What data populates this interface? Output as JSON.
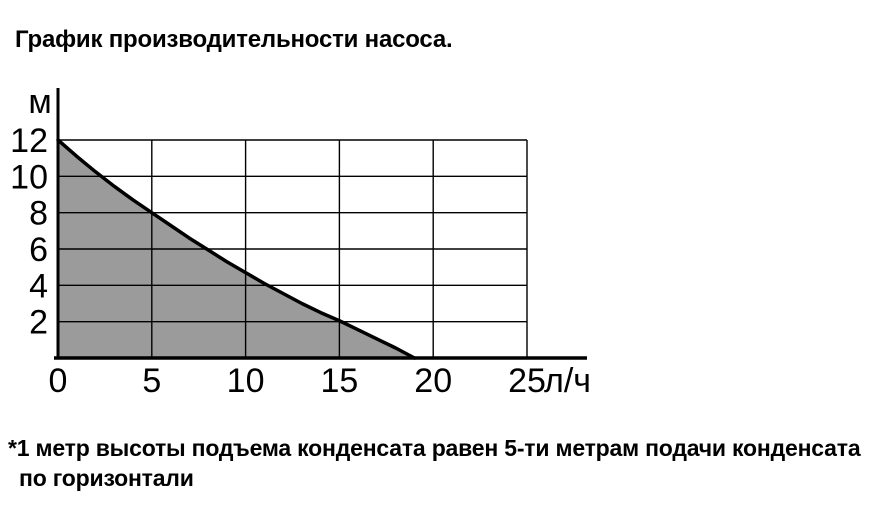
{
  "title": "График производительности насоса.",
  "footnote": {
    "line1": "*1 метр высоты подъема конденсата равен 5-ти метрам подачи конденсата",
    "line2": "по горизонтали"
  },
  "colors": {
    "background": "#ffffff",
    "text": "#000000",
    "area_fill": "#9b9b9b",
    "line": "#000000",
    "grid": "#000000"
  },
  "chart_data": {
    "type": "area",
    "title": "График производительности насоса.",
    "xlabel": "",
    "ylabel": "м",
    "x_unit_label": "л/ч",
    "y_unit_label": "м",
    "xlim": [
      0,
      25
    ],
    "ylim": [
      0,
      12
    ],
    "x_ticks": [
      0,
      5,
      10,
      15,
      20,
      25
    ],
    "y_ticks": [
      2,
      4,
      6,
      8,
      10,
      12
    ],
    "grid": true,
    "legend": false,
    "fill_color": "#9b9b9b",
    "line_color": "#000000",
    "axis_color": "#000000",
    "series": [
      {
        "name": "pump-head-vs-flow",
        "points": [
          [
            0,
            12
          ],
          [
            1,
            11.1
          ],
          [
            2,
            10.25
          ],
          [
            3,
            9.45
          ],
          [
            4,
            8.7
          ],
          [
            5,
            8
          ],
          [
            6,
            7.3
          ],
          [
            7,
            6.6
          ],
          [
            8,
            5.95
          ],
          [
            9,
            5.3
          ],
          [
            10,
            4.7
          ],
          [
            11,
            4.1
          ],
          [
            12,
            3.55
          ],
          [
            13,
            3.0
          ],
          [
            14,
            2.5
          ],
          [
            15,
            2.05
          ],
          [
            16,
            1.55
          ],
          [
            17,
            1.05
          ],
          [
            18,
            0.55
          ],
          [
            19,
            0
          ]
        ]
      }
    ]
  }
}
